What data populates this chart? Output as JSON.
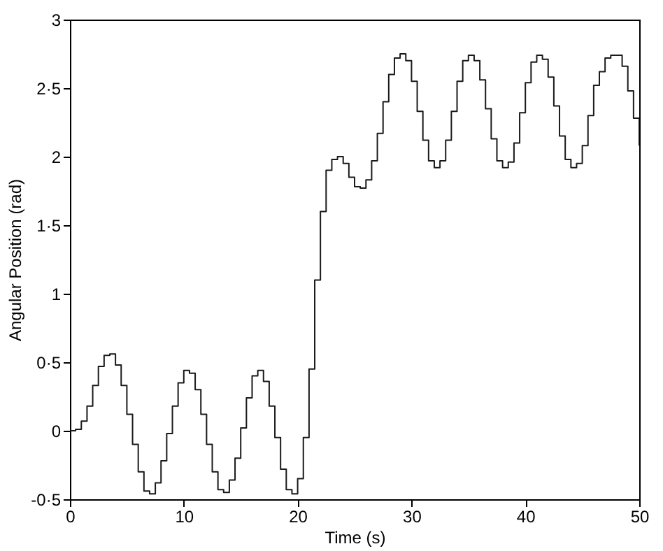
{
  "chart_data": {
    "type": "step",
    "xlabel": "Time (s)",
    "ylabel": "Angular Position (rad)",
    "x": [
      0,
      0.5,
      1,
      1.5,
      2,
      2.5,
      3,
      3.5,
      4,
      4.5,
      5,
      5.5,
      6,
      6.5,
      7,
      7.5,
      8,
      8.5,
      9,
      9.5,
      10,
      10.5,
      11,
      11.5,
      12,
      12.5,
      13,
      13.5,
      14,
      14.5,
      15,
      15.5,
      16,
      16.5,
      17,
      17.5,
      18,
      18.5,
      19,
      19.5,
      20,
      20.5,
      21,
      21.5,
      22,
      22.5,
      23,
      23.5,
      24,
      24.5,
      25,
      25.5,
      26,
      26.5,
      27,
      27.5,
      28,
      28.5,
      29,
      29.5,
      30,
      30.5,
      31,
      31.5,
      32,
      32.5,
      33,
      33.5,
      34,
      34.5,
      35,
      35.5,
      36,
      36.5,
      37,
      37.5,
      38,
      38.5,
      39,
      39.5,
      40,
      40.5,
      41,
      41.5,
      42,
      42.5,
      43,
      43.5,
      44,
      44.5,
      45,
      45.5,
      46,
      46.5,
      47,
      47.5,
      48,
      48.5,
      49,
      49.5,
      50
    ],
    "series": [
      {
        "color": "#1a1a1a",
        "values": [
          0,
          0.01,
          0.07,
          0.18,
          0.33,
          0.47,
          0.55,
          0.56,
          0.48,
          0.33,
          0.12,
          -0.1,
          -0.3,
          -0.44,
          -0.46,
          -0.38,
          -0.22,
          -0.02,
          0.18,
          0.35,
          0.44,
          0.42,
          0.3,
          0.12,
          -0.1,
          -0.3,
          -0.43,
          -0.45,
          -0.36,
          -0.2,
          0.02,
          0.24,
          0.4,
          0.44,
          0.36,
          0.18,
          -0.05,
          -0.28,
          -0.43,
          -0.46,
          -0.35,
          -0.05,
          0.45,
          1.1,
          1.6,
          1.9,
          1.98,
          2,
          1.95,
          1.85,
          1.78,
          1.77,
          1.83,
          1.97,
          2.17,
          2.4,
          2.6,
          2.72,
          2.75,
          2.7,
          2.55,
          2.33,
          2.12,
          1.97,
          1.92,
          1.97,
          2.12,
          2.33,
          2.55,
          2.7,
          2.74,
          2.7,
          2.56,
          2.35,
          2.13,
          1.97,
          1.92,
          1.96,
          2.1,
          2.32,
          2.54,
          2.69,
          2.74,
          2.71,
          2.58,
          2.37,
          2.15,
          1.98,
          1.92,
          1.95,
          2.08,
          2.3,
          2.52,
          2.62,
          2.72,
          2.74,
          2.74,
          2.66,
          2.48,
          2.28,
          2.08
        ]
      }
    ],
    "xlim": [
      0,
      50
    ],
    "xticks": [
      0,
      10,
      20,
      30,
      40,
      50
    ],
    "ylim": [
      -0.5,
      3
    ],
    "yticks": [
      {
        "value": -0.5,
        "label": "-0·5"
      },
      0,
      {
        "value": 0.5,
        "label": "0·5"
      },
      1,
      {
        "value": 1.5,
        "label": "1·5"
      },
      2,
      {
        "value": 2.5,
        "label": "2·5"
      },
      3
    ],
    "grid": false,
    "legend": false,
    "line_style": "solid",
    "marker": "none"
  }
}
